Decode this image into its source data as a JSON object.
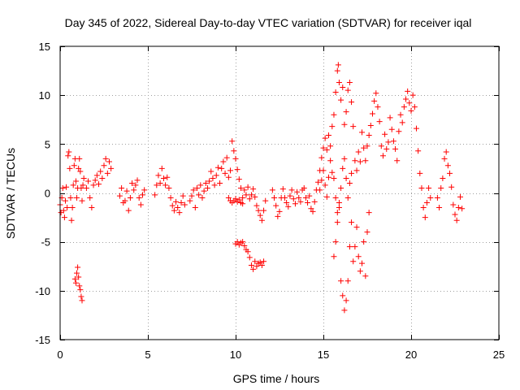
{
  "chart_data": {
    "type": "scatter",
    "title": "Day 345 of 2022, Sidereal Day-to-day VTEC variation (SDTVAR) for receiver iqal",
    "xlabel": "GPS time / hours",
    "ylabel": "SDTVAR / TECUs",
    "xlim": [
      0,
      25
    ],
    "ylim": [
      -15,
      15
    ],
    "xticks": [
      0,
      5,
      10,
      15,
      20,
      25
    ],
    "yticks": [
      -15,
      -10,
      -5,
      0,
      5,
      10,
      15
    ],
    "xtick_labels": [
      "0",
      "5",
      "10",
      "15",
      "20",
      "25"
    ],
    "ytick_labels": [
      "-15",
      "-10",
      "-5",
      "0",
      "5",
      "10",
      "15"
    ],
    "grid": true,
    "marker": "plus",
    "color": "#ff0000",
    "series": [
      {
        "name": "SDTVAR",
        "points": [
          [
            0.0,
            -1.2
          ],
          [
            0.05,
            -2.0
          ],
          [
            0.1,
            -0.5
          ],
          [
            0.15,
            0.5
          ],
          [
            0.2,
            -1.8
          ],
          [
            0.25,
            -2.5
          ],
          [
            0.3,
            -0.8
          ],
          [
            0.35,
            0.6
          ],
          [
            0.4,
            -1.5
          ],
          [
            0.45,
            3.8
          ],
          [
            0.5,
            4.2
          ],
          [
            0.55,
            2.5
          ],
          [
            0.6,
            -0.5
          ],
          [
            0.65,
            -2.8
          ],
          [
            0.7,
            -1.5
          ],
          [
            0.75,
            0.8
          ],
          [
            0.8,
            2.8
          ],
          [
            0.85,
            3.5
          ],
          [
            0.9,
            1.2
          ],
          [
            0.95,
            -0.5
          ],
          [
            1.0,
            0.5
          ],
          [
            1.05,
            2.5
          ],
          [
            1.1,
            3.5
          ],
          [
            1.15,
            2.2
          ],
          [
            1.2,
            0.5
          ],
          [
            1.25,
            -0.8
          ],
          [
            1.3,
            0.8
          ],
          [
            1.35,
            1.5
          ],
          [
            0.85,
            -8.8
          ],
          [
            0.9,
            -9.2
          ],
          [
            0.95,
            -8.2
          ],
          [
            1.0,
            -7.6
          ],
          [
            1.05,
            -8.6
          ],
          [
            1.1,
            -9.5
          ],
          [
            1.15,
            -9.9
          ],
          [
            1.2,
            -10.6
          ],
          [
            1.25,
            -11.0
          ],
          [
            1.5,
            0.5
          ],
          [
            1.6,
            1.2
          ],
          [
            1.7,
            -0.5
          ],
          [
            1.8,
            -1.5
          ],
          [
            1.9,
            0.8
          ],
          [
            2.0,
            1.3
          ],
          [
            2.1,
            1.8
          ],
          [
            2.2,
            0.9
          ],
          [
            2.3,
            2.2
          ],
          [
            2.4,
            1.5
          ],
          [
            2.5,
            2.8
          ],
          [
            2.6,
            3.5
          ],
          [
            2.7,
            2.0
          ],
          [
            2.8,
            3.2
          ],
          [
            2.9,
            2.5
          ],
          [
            3.4,
            -0.3
          ],
          [
            3.5,
            0.5
          ],
          [
            3.6,
            -1.0
          ],
          [
            3.7,
            -0.8
          ],
          [
            3.8,
            0.2
          ],
          [
            3.9,
            -1.8
          ],
          [
            4.0,
            -0.5
          ],
          [
            4.1,
            1.0
          ],
          [
            4.2,
            0.3
          ],
          [
            4.3,
            0.8
          ],
          [
            4.4,
            1.3
          ],
          [
            4.5,
            -0.5
          ],
          [
            4.6,
            -1.2
          ],
          [
            4.7,
            -0.2
          ],
          [
            4.8,
            0.3
          ],
          [
            5.4,
            -0.2
          ],
          [
            5.5,
            0.8
          ],
          [
            5.6,
            1.8
          ],
          [
            5.7,
            1.0
          ],
          [
            5.8,
            2.5
          ],
          [
            5.9,
            1.5
          ],
          [
            6.0,
            0.8
          ],
          [
            6.1,
            1.6
          ],
          [
            6.2,
            0.5
          ],
          [
            6.3,
            -0.5
          ],
          [
            6.4,
            -1.3
          ],
          [
            6.5,
            -1.8
          ],
          [
            6.6,
            -0.9
          ],
          [
            6.7,
            -1.5
          ],
          [
            6.8,
            -2.0
          ],
          [
            6.9,
            -1.0
          ],
          [
            7.0,
            -0.3
          ],
          [
            7.1,
            -1.2
          ],
          [
            7.4,
            -0.8
          ],
          [
            7.5,
            -0.3
          ],
          [
            7.6,
            0.3
          ],
          [
            7.7,
            -1.5
          ],
          [
            7.8,
            0.5
          ],
          [
            7.9,
            -0.2
          ],
          [
            8.0,
            0.8
          ],
          [
            8.1,
            -0.5
          ],
          [
            8.2,
            0.2
          ],
          [
            8.3,
            1.0
          ],
          [
            8.4,
            0.5
          ],
          [
            8.5,
            1.2
          ],
          [
            8.6,
            2.2
          ],
          [
            8.7,
            1.5
          ],
          [
            8.8,
            0.8
          ],
          [
            8.9,
            1.8
          ],
          [
            9.0,
            2.6
          ],
          [
            9.1,
            1.0
          ],
          [
            9.2,
            2.5
          ],
          [
            9.3,
            3.2
          ],
          [
            9.4,
            2.0
          ],
          [
            9.5,
            3.6
          ],
          [
            9.6,
            1.6
          ],
          [
            9.7,
            2.3
          ],
          [
            9.8,
            5.3
          ],
          [
            9.9,
            4.3
          ],
          [
            10.0,
            3.5
          ],
          [
            10.1,
            2.4
          ],
          [
            10.2,
            1.4
          ],
          [
            10.3,
            0.5
          ],
          [
            10.4,
            -0.5
          ],
          [
            10.5,
            0.3
          ],
          [
            10.6,
            -0.2
          ],
          [
            10.7,
            0.6
          ],
          [
            10.8,
            -0.6
          ],
          [
            10.9,
            -0.2
          ],
          [
            11.0,
            0.4
          ],
          [
            11.1,
            -0.4
          ],
          [
            11.2,
            -1.3
          ],
          [
            11.3,
            -1.8
          ],
          [
            11.4,
            -2.3
          ],
          [
            11.5,
            -2.8
          ],
          [
            11.6,
            -1.8
          ],
          [
            11.7,
            -0.8
          ],
          [
            9.6,
            -0.5
          ],
          [
            9.7,
            -0.8
          ],
          [
            9.8,
            -1.0
          ],
          [
            9.9,
            -0.8
          ],
          [
            10.0,
            -0.6
          ],
          [
            10.1,
            -0.9
          ],
          [
            10.2,
            -0.7
          ],
          [
            10.3,
            -1.0
          ],
          [
            10.4,
            -1.1
          ],
          [
            10.0,
            -5.2
          ],
          [
            10.1,
            -5.0
          ],
          [
            10.2,
            -5.3
          ],
          [
            10.3,
            -5.1
          ],
          [
            10.4,
            -5.0
          ],
          [
            10.5,
            -5.4
          ],
          [
            10.6,
            -5.8
          ],
          [
            10.7,
            -6.0
          ],
          [
            10.8,
            -6.6
          ],
          [
            10.9,
            -7.4
          ],
          [
            11.0,
            -7.8
          ],
          [
            11.1,
            -7.0
          ],
          [
            11.2,
            -7.5
          ],
          [
            11.3,
            -7.2
          ],
          [
            11.4,
            -7.1
          ],
          [
            11.5,
            -7.4
          ],
          [
            11.6,
            -7.0
          ],
          [
            12.1,
            0.3
          ],
          [
            12.2,
            -0.5
          ],
          [
            12.3,
            -1.3
          ],
          [
            12.4,
            -2.4
          ],
          [
            12.5,
            -1.9
          ],
          [
            12.6,
            -0.5
          ],
          [
            12.7,
            0.4
          ],
          [
            12.8,
            -0.5
          ],
          [
            12.9,
            -1.0
          ],
          [
            13.0,
            -1.4
          ],
          [
            13.1,
            -0.3
          ],
          [
            13.2,
            0.3
          ],
          [
            13.3,
            -0.6
          ],
          [
            13.4,
            -1.1
          ],
          [
            13.5,
            0.1
          ],
          [
            13.6,
            -0.5
          ],
          [
            13.7,
            -0.9
          ],
          [
            13.8,
            0.3
          ],
          [
            13.9,
            0.5
          ],
          [
            14.0,
            -0.5
          ],
          [
            14.1,
            -1.0
          ],
          [
            14.2,
            -0.3
          ],
          [
            14.3,
            -1.6
          ],
          [
            14.4,
            -1.9
          ],
          [
            14.5,
            -0.9
          ],
          [
            14.6,
            0.3
          ],
          [
            14.7,
            1.1
          ],
          [
            14.8,
            2.3
          ],
          [
            14.9,
            3.6
          ],
          [
            15.0,
            4.6
          ],
          [
            15.1,
            5.6
          ],
          [
            15.2,
            4.4
          ],
          [
            15.3,
            5.9
          ],
          [
            15.4,
            4.8
          ],
          [
            15.5,
            6.8
          ],
          [
            15.6,
            8.0
          ],
          [
            15.7,
            10.3
          ],
          [
            15.8,
            12.5
          ],
          [
            15.85,
            13.1
          ],
          [
            15.9,
            11.3
          ],
          [
            16.0,
            9.5
          ],
          [
            16.1,
            10.8
          ],
          [
            16.2,
            7.0
          ],
          [
            16.3,
            8.3
          ],
          [
            16.4,
            10.5
          ],
          [
            16.5,
            11.3
          ],
          [
            16.6,
            9.3
          ],
          [
            16.7,
            6.8
          ],
          [
            16.8,
            3.3
          ],
          [
            16.9,
            2.3
          ],
          [
            17.0,
            4.2
          ],
          [
            17.1,
            3.2
          ],
          [
            17.2,
            6.2
          ],
          [
            17.3,
            4.6
          ],
          [
            17.4,
            3.3
          ],
          [
            17.5,
            4.8
          ],
          [
            17.6,
            5.9
          ],
          [
            17.7,
            6.9
          ],
          [
            17.8,
            8.1
          ],
          [
            17.9,
            9.4
          ],
          [
            18.0,
            10.2
          ],
          [
            18.1,
            8.8
          ],
          [
            18.2,
            7.3
          ],
          [
            18.3,
            4.8
          ],
          [
            18.4,
            3.8
          ],
          [
            18.5,
            6.0
          ],
          [
            18.6,
            4.5
          ],
          [
            18.7,
            5.2
          ],
          [
            18.8,
            7.7
          ],
          [
            18.9,
            6.5
          ],
          [
            19.0,
            5.3
          ],
          [
            19.1,
            4.5
          ],
          [
            19.2,
            3.3
          ],
          [
            19.3,
            6.3
          ],
          [
            19.4,
            8.0
          ],
          [
            19.5,
            7.2
          ],
          [
            19.6,
            8.8
          ],
          [
            19.7,
            9.6
          ],
          [
            19.8,
            10.4
          ],
          [
            19.9,
            9.2
          ],
          [
            20.0,
            8.4
          ],
          [
            20.1,
            10.0
          ],
          [
            20.2,
            8.8
          ],
          [
            20.3,
            6.6
          ],
          [
            20.4,
            4.3
          ],
          [
            20.5,
            2.0
          ],
          [
            20.6,
            0.5
          ],
          [
            20.7,
            -1.5
          ],
          [
            20.8,
            -2.5
          ],
          [
            20.9,
            -1.0
          ],
          [
            21.0,
            0.5
          ],
          [
            21.1,
            -0.5
          ],
          [
            15.6,
            -6.5
          ],
          [
            15.7,
            -5.0
          ],
          [
            15.8,
            -3.0
          ],
          [
            15.9,
            -1.0
          ],
          [
            16.0,
            -9.0
          ],
          [
            16.1,
            -10.5
          ],
          [
            16.2,
            -12.0
          ],
          [
            16.3,
            -11.0
          ],
          [
            16.4,
            -9.0
          ],
          [
            16.5,
            -5.5
          ],
          [
            16.6,
            -3.0
          ],
          [
            16.7,
            -7.0
          ],
          [
            16.8,
            -5.5
          ],
          [
            16.9,
            -3.5
          ],
          [
            17.0,
            -6.5
          ],
          [
            17.1,
            -8.0
          ],
          [
            17.2,
            -7.2
          ],
          [
            17.3,
            -5.0
          ],
          [
            17.4,
            -8.5
          ],
          [
            17.5,
            -4.0
          ],
          [
            17.6,
            -2.0
          ],
          [
            14.8,
            0.3
          ],
          [
            14.9,
            1.3
          ],
          [
            15.0,
            2.3
          ],
          [
            15.1,
            0.8
          ],
          [
            15.2,
            -0.4
          ],
          [
            15.3,
            1.6
          ],
          [
            15.4,
            3.3
          ],
          [
            15.5,
            2.1
          ],
          [
            15.6,
            1.5
          ],
          [
            15.7,
            -0.5
          ],
          [
            15.8,
            -2.0
          ],
          [
            15.9,
            -1.5
          ],
          [
            16.0,
            0.5
          ],
          [
            16.1,
            2.5
          ],
          [
            16.2,
            3.5
          ],
          [
            16.3,
            1.5
          ],
          [
            16.4,
            -0.5
          ],
          [
            16.5,
            1.0
          ],
          [
            16.6,
            2.0
          ],
          [
            21.5,
            -0.5
          ],
          [
            21.6,
            -1.5
          ],
          [
            21.7,
            0.5
          ],
          [
            21.8,
            1.5
          ],
          [
            21.9,
            3.5
          ],
          [
            22.0,
            4.2
          ],
          [
            22.1,
            2.8
          ],
          [
            22.2,
            2.0
          ],
          [
            22.3,
            0.6
          ],
          [
            22.4,
            -1.2
          ],
          [
            22.5,
            -2.2
          ],
          [
            22.6,
            -2.8
          ],
          [
            22.7,
            -1.5
          ],
          [
            22.8,
            -0.4
          ],
          [
            22.9,
            -1.6
          ]
        ]
      }
    ]
  }
}
